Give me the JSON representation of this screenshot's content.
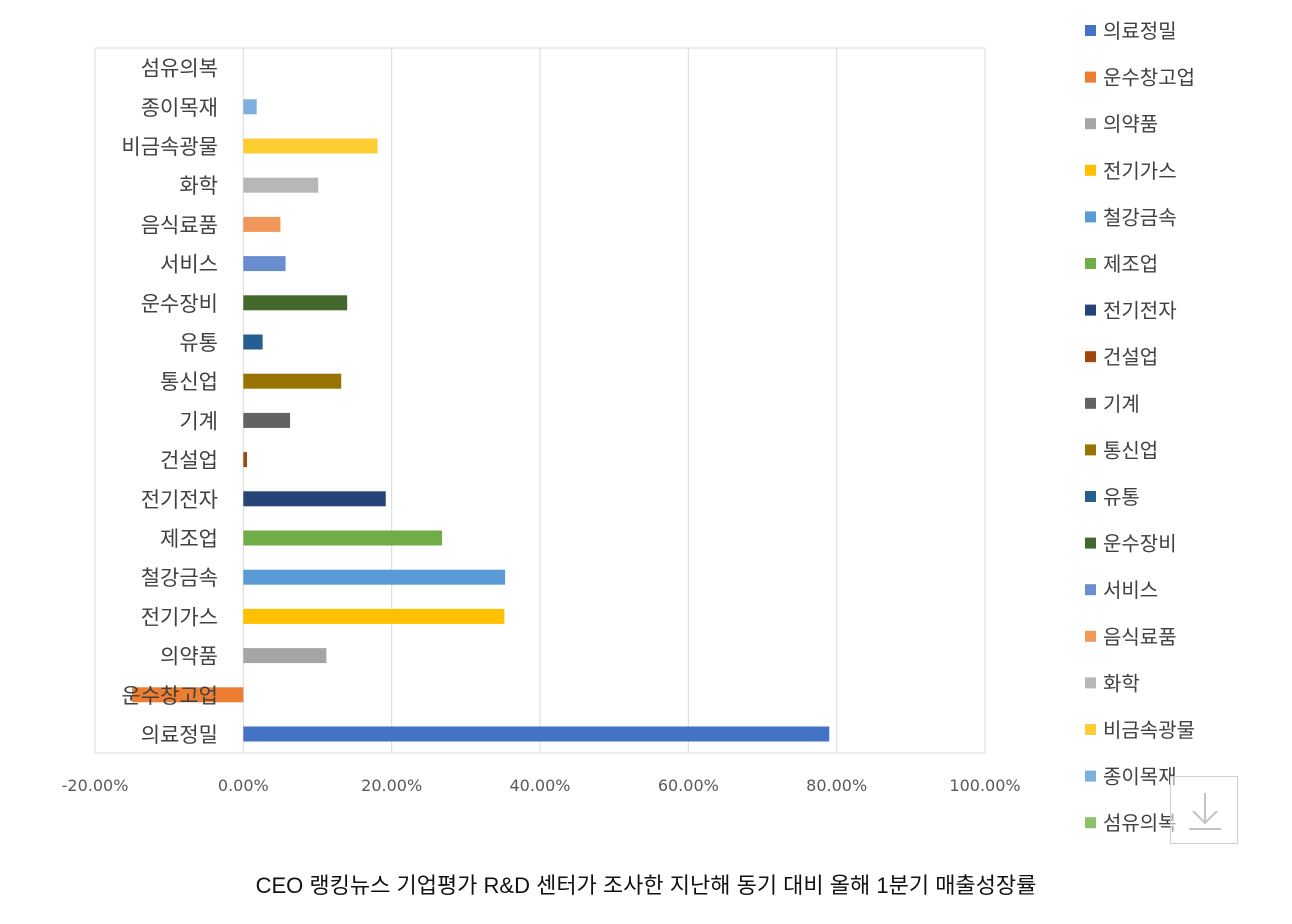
{
  "chart_data": {
    "type": "bar",
    "orientation": "horizontal",
    "categories": [
      "의료정밀",
      "운수창고업",
      "의약품",
      "전기가스",
      "철강금속",
      "제조업",
      "전기전자",
      "건설업",
      "기계",
      "통신업",
      "유통",
      "운수장비",
      "서비스",
      "음식료품",
      "화학",
      "비금속광물",
      "종이목재",
      "섬유의복"
    ],
    "values": [
      79.0,
      -15.0,
      11.2,
      35.2,
      35.3,
      26.8,
      19.2,
      0.5,
      6.3,
      13.2,
      2.6,
      14.0,
      5.7,
      5.0,
      10.1,
      18.1,
      1.8,
      0
    ],
    "colors": [
      "#4472C4",
      "#ED7D31",
      "#A5A5A5",
      "#FFC000",
      "#5B9BD5",
      "#70AD47",
      "#264478",
      "#9E480E",
      "#636363",
      "#997300",
      "#255E91",
      "#43682B",
      "#698ED0",
      "#F1975A",
      "#B7B7B7",
      "#FFCD33",
      "#7CAFDD",
      "#8CC168"
    ],
    "xlim": [
      -20,
      100
    ],
    "x_ticks": [
      "-20.00%",
      "0.00%",
      "20.00%",
      "40.00%",
      "60.00%",
      "80.00%",
      "100.00%"
    ],
    "grid": true,
    "legend_position": "right",
    "title": "",
    "xlabel": "",
    "ylabel": ""
  },
  "caption": "CEO 랭킹뉴스 기업평가 R&D 센터가 조사한 지난해 동기 대비 올해 1분기 매출성장률",
  "download_icon": "download-icon"
}
